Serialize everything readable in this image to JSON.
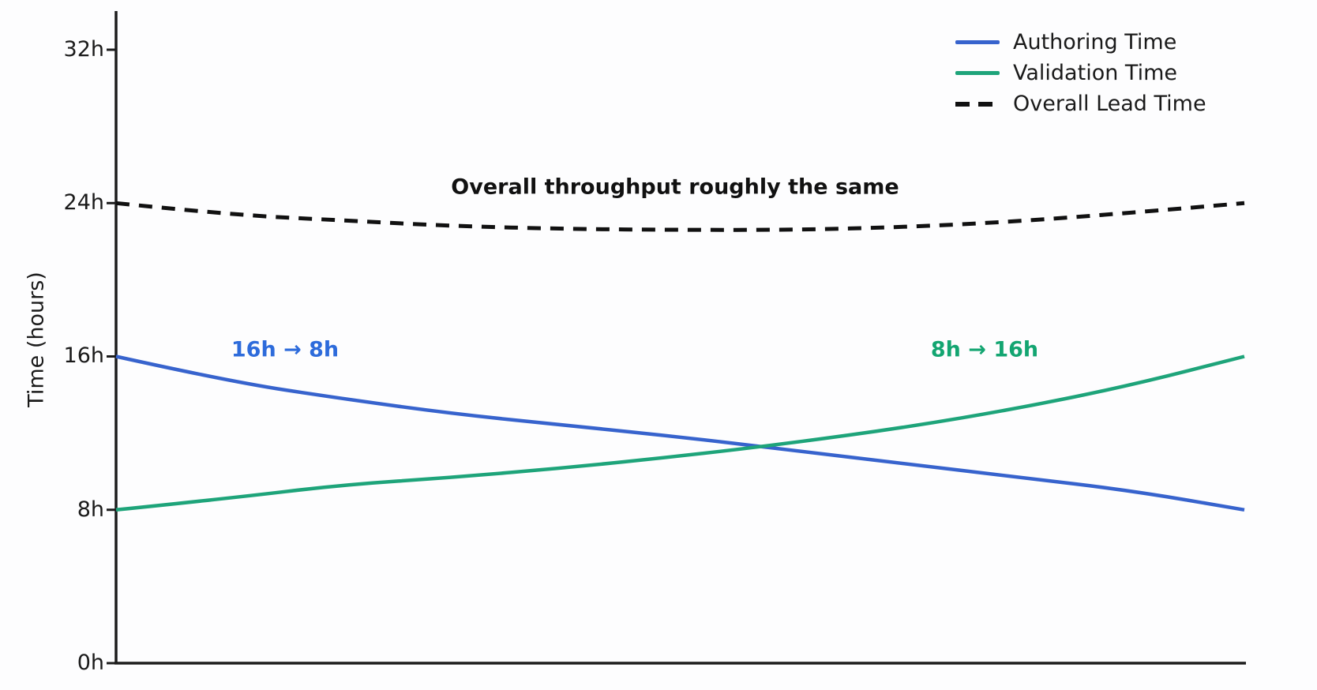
{
  "chart_data": {
    "type": "line",
    "title": "",
    "xlabel": "",
    "ylabel": "Time (hours)",
    "ylim": [
      0,
      34
    ],
    "xlim": [
      0,
      1
    ],
    "grid": false,
    "legend_position": "upper right",
    "x_tick_labels_visible": false,
    "yticks": [
      {
        "value": 0,
        "label": "0h"
      },
      {
        "value": 8,
        "label": "8h"
      },
      {
        "value": 16,
        "label": "16h"
      },
      {
        "value": 24,
        "label": "24h"
      },
      {
        "value": 32,
        "label": "32h"
      }
    ],
    "x": [
      0,
      0.1,
      0.2,
      0.3,
      0.4,
      0.5,
      0.6,
      0.7,
      0.8,
      0.9,
      1.0
    ],
    "series": [
      {
        "name": "Authoring Time",
        "color": "#3763cd",
        "style": "solid",
        "values": [
          16.0,
          14.7,
          13.8,
          13.0,
          12.4,
          11.8,
          11.1,
          10.4,
          9.7,
          9.0,
          8.0
        ]
      },
      {
        "name": "Validation Time",
        "color": "#1ea47a",
        "style": "solid",
        "values": [
          8.0,
          8.6,
          9.3,
          9.7,
          10.2,
          10.8,
          11.5,
          12.3,
          13.3,
          14.5,
          16.0
        ]
      },
      {
        "name": "Overall Lead Time",
        "color": "#111111",
        "style": "dashed",
        "values": [
          24.0,
          23.4,
          23.1,
          22.8,
          22.65,
          22.6,
          22.6,
          22.75,
          23.05,
          23.5,
          24.0
        ]
      }
    ],
    "annotations": [
      {
        "text": "Overall throughput roughly the same",
        "color": "#111111"
      },
      {
        "text": "16h → 8h",
        "color": "#2d6bdb"
      },
      {
        "text": "8h → 16h",
        "color": "#13a571"
      }
    ],
    "axis_color": "#1c1c1c"
  }
}
